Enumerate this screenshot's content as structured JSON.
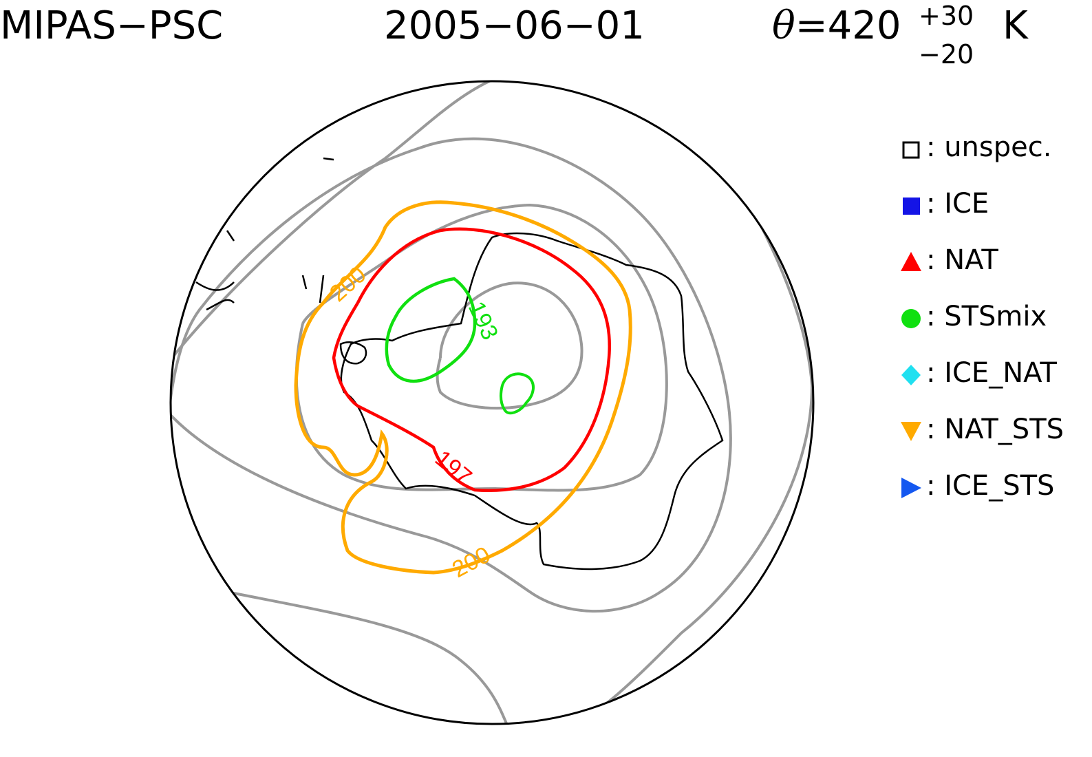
{
  "header": {
    "instrument": "MIPAS−PSC",
    "date": "2005−06−01",
    "theta_symbol": "θ",
    "theta_value": "=420",
    "theta_plus": "+30",
    "theta_minus": "−20",
    "theta_unit": "K"
  },
  "legend": {
    "items": [
      {
        "symbol": "open-square",
        "color": "#000000",
        "label": ": unspec."
      },
      {
        "symbol": "filled-square",
        "color": "#1414e6",
        "label": ": ICE"
      },
      {
        "symbol": "triangle-up",
        "color": "#ff0000",
        "label": ": NAT"
      },
      {
        "symbol": "circle",
        "color": "#10e010",
        "label": ": STSmix"
      },
      {
        "symbol": "diamond",
        "color": "#20e0f0",
        "label": ": ICE_NAT"
      },
      {
        "symbol": "triangle-down",
        "color": "#ffaa00",
        "label": ": NAT_STS"
      },
      {
        "symbol": "triangle-right",
        "color": "#1458f0",
        "label": ": ICE_STS"
      }
    ]
  },
  "contour_labels": {
    "orange_upper": "200",
    "orange_lower": "200",
    "red": "197",
    "green": "193"
  },
  "colors": {
    "nat_sts_contour": "#ffaa00",
    "nat_contour": "#ff0000",
    "stsmix_contour": "#10e010",
    "background_contour": "#999999",
    "coastline": "#000000"
  }
}
